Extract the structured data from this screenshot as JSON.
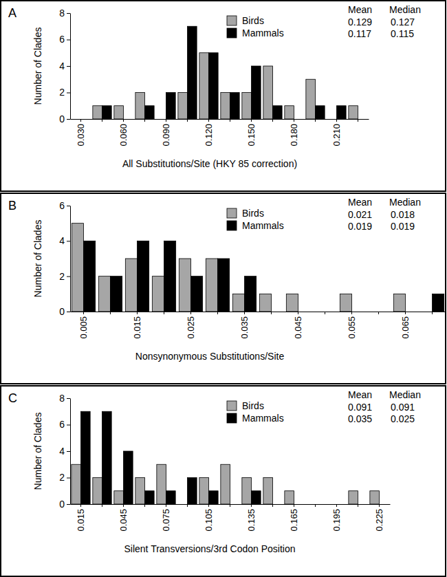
{
  "chart_data": [
    {
      "type": "bar",
      "title": "A",
      "x_label": "All Substitutions/Site (HKY 85 correction)",
      "y_label": "Number of Clades",
      "categories": [
        "0.030",
        null,
        "0.060",
        null,
        "0.090",
        null,
        "0.120",
        null,
        "0.150",
        null,
        "0.180",
        null,
        "0.210",
        null
      ],
      "annotations": [
        "Mean",
        "Median"
      ],
      "series": [
        {
          "name": "Birds",
          "color": "#a6a6a6",
          "values": [
            0,
            1,
            1,
            2,
            0,
            2,
            5,
            2,
            2,
            4,
            1,
            3,
            0,
            1
          ],
          "mean": 0.129,
          "median": 0.127
        },
        {
          "name": "Mammals",
          "color": "#000000",
          "values": [
            0,
            1,
            0,
            1,
            2,
            7,
            5,
            2,
            4,
            1,
            0,
            1,
            1,
            0
          ],
          "mean": 0.117,
          "median": 0.115
        }
      ],
      "ylim": [
        0,
        8
      ],
      "yticks": [
        0,
        2,
        4,
        6,
        8
      ]
    },
    {
      "type": "bar",
      "title": "B",
      "x_label": "Nonsynonymous Substitutions/Site",
      "y_label": "Number of Clades",
      "categories": [
        "0.005",
        null,
        "0.015",
        null,
        "0.025",
        null,
        "0.035",
        null,
        "0.045",
        null,
        "0.055",
        null,
        "0.065",
        null
      ],
      "annotations": [
        "Mean",
        "Median"
      ],
      "series": [
        {
          "name": "Birds",
          "color": "#a6a6a6",
          "values": [
            5,
            2,
            3,
            2,
            3,
            3,
            1,
            1,
            1,
            0,
            1,
            0,
            1,
            0
          ],
          "mean": 0.021,
          "median": 0.018
        },
        {
          "name": "Mammals",
          "color": "#000000",
          "values": [
            4,
            2,
            4,
            4,
            2,
            3,
            2,
            0,
            0,
            0,
            0,
            0,
            0,
            1
          ],
          "mean": 0.019,
          "median": 0.019
        }
      ],
      "ylim": [
        0,
        6
      ],
      "yticks": [
        0,
        2,
        4,
        6
      ]
    },
    {
      "type": "bar",
      "title": "C",
      "x_label": "Silent Transversions/3rd Codon Position",
      "y_label": "Number of Clades",
      "categories": [
        "0.015",
        null,
        "0.045",
        null,
        "0.075",
        null,
        "0.105",
        null,
        "0.135",
        null,
        "0.165",
        null,
        "0.195",
        null,
        "0.225"
      ],
      "annotations": [
        "Mean",
        "Median"
      ],
      "series": [
        {
          "name": "Birds",
          "color": "#a6a6a6",
          "values": [
            3,
            2,
            1,
            2,
            3,
            0,
            2,
            3,
            2,
            2,
            1,
            0,
            0,
            1,
            1
          ],
          "mean": 0.091,
          "median": 0.091
        },
        {
          "name": "Mammals",
          "color": "#000000",
          "values": [
            7,
            7,
            4,
            1,
            1,
            2,
            1,
            0,
            1,
            0,
            0,
            0,
            0,
            0,
            0
          ],
          "mean": 0.035,
          "median": 0.025
        }
      ],
      "ylim": [
        0,
        8
      ],
      "yticks": [
        0,
        2,
        4,
        6,
        8
      ]
    }
  ]
}
